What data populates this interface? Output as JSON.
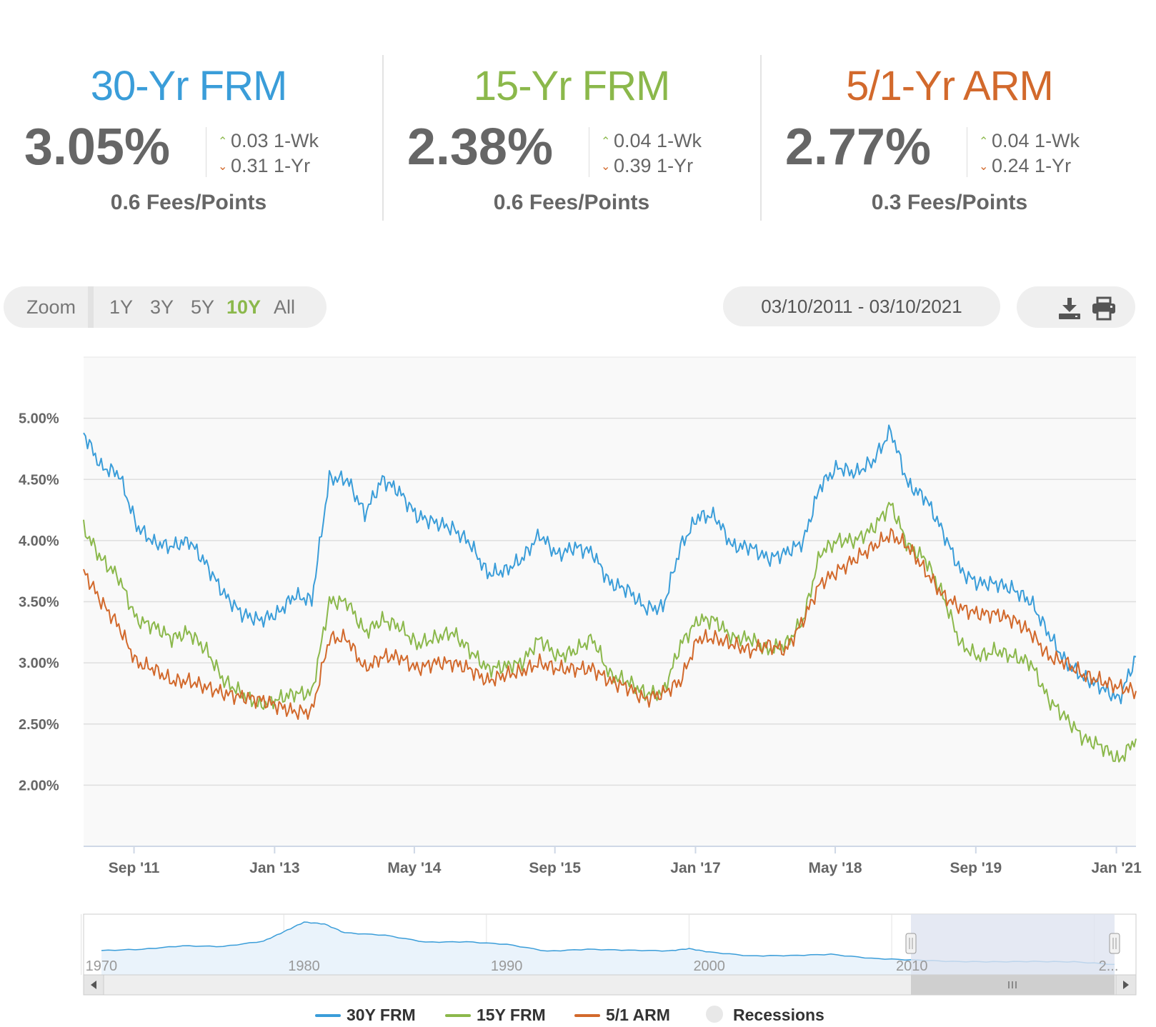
{
  "cards": [
    {
      "title": "30-Yr FRM",
      "color": "#3a9dd9",
      "rate": "3.05%",
      "wk_change": "0.03 1-Wk",
      "wk_dir": "up",
      "yr_change": "0.31 1-Yr",
      "yr_dir": "down",
      "fees": "0.6 Fees/Points"
    },
    {
      "title": "15-Yr FRM",
      "color": "#8bb84b",
      "rate": "2.38%",
      "wk_change": "0.04 1-Wk",
      "wk_dir": "up",
      "yr_change": "0.39 1-Yr",
      "yr_dir": "down",
      "fees": "0.6 Fees/Points"
    },
    {
      "title": "5/1-Yr ARM",
      "color": "#d2692c",
      "rate": "2.77%",
      "wk_change": "0.04 1-Wk",
      "wk_dir": "up",
      "yr_change": "0.24 1-Yr",
      "yr_dir": "down",
      "fees": "0.3 Fees/Points"
    }
  ],
  "toolbar": {
    "zoom_label": "Zoom",
    "zoom_options": [
      "1Y",
      "3Y",
      "5Y",
      "10Y",
      "All"
    ],
    "zoom_active": "10Y",
    "date_range": "03/10/2011 - 03/10/2021",
    "download_icon": "download-icon",
    "print_icon": "print-icon"
  },
  "colors": {
    "frm30": "#3a9dd9",
    "frm15": "#8bb84b",
    "arm51": "#d2692c",
    "accent": "#8bb84b",
    "plot_bg": "#f9f9f9",
    "navigator_mask": "#dfe4f0"
  },
  "chart_data": {
    "type": "line",
    "title": "",
    "xlabel": "",
    "ylabel": "",
    "x_start": "2011-03-10",
    "x_end": "2021-03-10",
    "ylim": [
      1.5,
      5.5
    ],
    "y_ticks": [
      "2.00%",
      "2.50%",
      "3.00%",
      "3.50%",
      "4.00%",
      "4.50%",
      "5.00%"
    ],
    "x_ticks": [
      "Sep '11",
      "Jan '13",
      "May '14",
      "Sep '15",
      "Jan '17",
      "May '18",
      "Sep '19",
      "Jan '21"
    ],
    "grid": true,
    "legend_position": "bottom",
    "x": [
      "2011-03",
      "2011-05",
      "2011-07",
      "2011-09",
      "2011-11",
      "2012-01",
      "2012-03",
      "2012-05",
      "2012-07",
      "2012-09",
      "2012-11",
      "2013-01",
      "2013-03",
      "2013-05",
      "2013-07",
      "2013-09",
      "2013-11",
      "2014-01",
      "2014-03",
      "2014-05",
      "2014-07",
      "2014-09",
      "2014-11",
      "2015-01",
      "2015-03",
      "2015-05",
      "2015-07",
      "2015-09",
      "2015-11",
      "2016-01",
      "2016-03",
      "2016-05",
      "2016-07",
      "2016-09",
      "2016-11",
      "2017-01",
      "2017-03",
      "2017-05",
      "2017-07",
      "2017-09",
      "2017-11",
      "2018-01",
      "2018-03",
      "2018-05",
      "2018-07",
      "2018-09",
      "2018-11",
      "2019-01",
      "2019-03",
      "2019-05",
      "2019-07",
      "2019-09",
      "2019-11",
      "2020-01",
      "2020-03",
      "2020-05",
      "2020-07",
      "2020-09",
      "2020-11",
      "2021-01",
      "2021-03"
    ],
    "series": [
      {
        "name": "30Y FRM",
        "values": [
          4.88,
          4.6,
          4.55,
          4.12,
          3.98,
          3.95,
          4.0,
          3.8,
          3.56,
          3.4,
          3.35,
          3.4,
          3.55,
          3.51,
          4.51,
          4.5,
          4.22,
          4.5,
          4.4,
          4.2,
          4.15,
          4.1,
          3.98,
          3.73,
          3.75,
          3.85,
          4.05,
          3.88,
          3.95,
          3.9,
          3.65,
          3.6,
          3.45,
          3.45,
          3.95,
          4.2,
          4.2,
          3.95,
          3.95,
          3.85,
          3.9,
          3.99,
          4.45,
          4.6,
          4.55,
          4.65,
          4.9,
          4.45,
          4.35,
          4.07,
          3.75,
          3.65,
          3.65,
          3.6,
          3.5,
          3.24,
          3.0,
          2.88,
          2.8,
          2.7,
          3.05
        ]
      },
      {
        "name": "15Y FRM",
        "values": [
          4.1,
          3.85,
          3.7,
          3.35,
          3.3,
          3.2,
          3.25,
          3.1,
          2.85,
          2.75,
          2.65,
          2.7,
          2.75,
          2.75,
          3.5,
          3.5,
          3.25,
          3.35,
          3.3,
          3.15,
          3.2,
          3.25,
          3.1,
          2.95,
          2.97,
          3.0,
          3.2,
          3.05,
          3.1,
          3.2,
          2.9,
          2.85,
          2.75,
          2.75,
          3.15,
          3.35,
          3.35,
          3.2,
          3.2,
          3.1,
          3.15,
          3.35,
          3.9,
          4.0,
          4.0,
          4.1,
          4.3,
          3.95,
          3.85,
          3.55,
          3.15,
          3.05,
          3.1,
          3.05,
          3.0,
          2.7,
          2.55,
          2.38,
          2.32,
          2.2,
          2.38
        ]
      },
      {
        "name": "5/1 ARM",
        "values": [
          3.75,
          3.5,
          3.3,
          3.0,
          2.95,
          2.85,
          2.85,
          2.8,
          2.75,
          2.72,
          2.7,
          2.65,
          2.6,
          2.6,
          3.2,
          3.2,
          2.95,
          3.05,
          3.05,
          2.95,
          3.0,
          3.0,
          2.95,
          2.85,
          2.9,
          2.93,
          3.0,
          2.95,
          2.95,
          2.95,
          2.85,
          2.8,
          2.7,
          2.75,
          2.85,
          3.2,
          3.2,
          3.15,
          3.1,
          3.15,
          3.1,
          3.35,
          3.65,
          3.75,
          3.85,
          3.95,
          4.05,
          3.95,
          3.75,
          3.55,
          3.45,
          3.4,
          3.4,
          3.35,
          3.25,
          3.05,
          3.0,
          2.9,
          2.85,
          2.8,
          2.77
        ]
      }
    ]
  },
  "navigator": {
    "x_labels": [
      "1970",
      "1980",
      "1990",
      "2000",
      "2010",
      "2..."
    ],
    "history_years": [
      1971,
      1973,
      1975,
      1977,
      1979,
      1980,
      1981,
      1982,
      1983,
      1985,
      1987,
      1989,
      1991,
      1993,
      1995,
      1997,
      1999,
      2000,
      2001,
      2003,
      2005,
      2007,
      2009,
      2011,
      2013,
      2015,
      2017,
      2019,
      2021
    ],
    "history_values": [
      7.5,
      7.9,
      9.0,
      8.8,
      10.5,
      13.5,
      16.6,
      16.0,
      13.2,
      12.4,
      10.2,
      10.3,
      9.5,
      7.3,
      7.9,
      7.6,
      7.4,
      8.1,
      7.0,
      5.8,
      5.9,
      6.3,
      5.0,
      4.5,
      4.0,
      3.9,
      4.0,
      3.9,
      3.05
    ]
  },
  "legend": [
    {
      "label": "30Y FRM",
      "color": "#3a9dd9"
    },
    {
      "label": "15Y FRM",
      "color": "#8bb84b"
    },
    {
      "label": "5/1 ARM",
      "color": "#d2692c"
    },
    {
      "label": "Recessions",
      "color": "#e8e8e8"
    }
  ]
}
